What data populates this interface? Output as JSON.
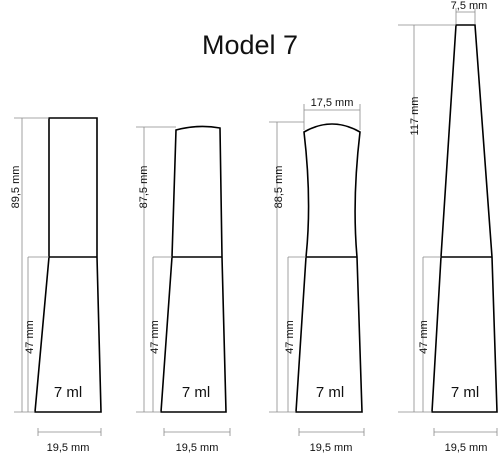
{
  "title": "Model 7",
  "bottles": [
    {
      "total_height": "89,5 mm",
      "base_height": "47 mm",
      "volume": "7 ml",
      "base_width": "19,5 mm"
    },
    {
      "total_height": "87,5 mm",
      "base_height": "47 mm",
      "volume": "7 ml",
      "base_width": "19,5 mm"
    },
    {
      "total_height": "88,5 mm",
      "base_height": "47 mm",
      "volume": "7 ml",
      "base_width": "19,5 mm",
      "top_width": "17,5 mm"
    },
    {
      "total_height": "117 mm",
      "base_height": "47 mm",
      "volume": "7 ml",
      "base_width": "19,5 mm",
      "top_width": "7,5 mm"
    }
  ]
}
